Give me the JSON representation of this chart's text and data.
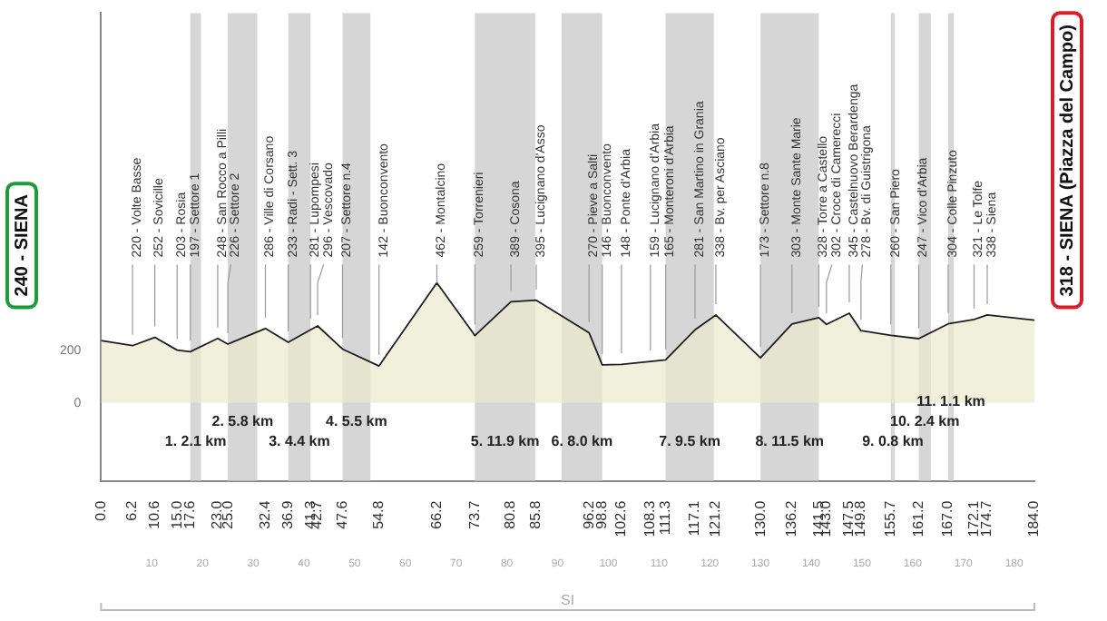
{
  "chart_data": {
    "type": "area",
    "x": [
      0,
      6.2,
      10.6,
      15.0,
      17.6,
      23.0,
      25.0,
      32.4,
      36.9,
      41.3,
      42.7,
      47.6,
      54.8,
      66.2,
      73.7,
      80.8,
      85.8,
      96.2,
      98.8,
      102.6,
      108.3,
      111.3,
      117.1,
      121.2,
      130.0,
      136.2,
      141.5,
      143.0,
      147.5,
      149.8,
      155.7,
      161.2,
      167.0,
      172.1,
      174.7,
      184.0
    ],
    "series": [
      {
        "color": "#e9e9cf",
        "values": [
          240,
          220,
          252,
          203,
          197,
          248,
          226,
          286,
          233,
          281,
          296,
          207,
          142,
          462,
          259,
          389,
          395,
          270,
          146,
          148,
          159,
          165,
          281,
          338,
          173,
          303,
          328,
          302,
          345,
          278,
          260,
          247,
          304,
          321,
          338,
          318
        ],
        "value_labels": [
          null,
          "220 - Volte Basse",
          "252 - Sovicille",
          "203 - Rosia",
          "197 - Settore 1",
          "248 - San Rocco a Pilli",
          "226 - Settore 2",
          "286 - Ville di Corsano",
          "233 - Radi - Sett. 3",
          "281 - Lupompesi",
          "296 - Vescovado",
          "207 - Settore n.4",
          "142 - Buonconvento",
          "462 - Montalcino",
          "259 - Torrenieri",
          "389 - Cosona",
          "395 - Lucignano d'Asso",
          "270 - Pieve a Salti",
          "146 - Buonconvento",
          "148 - Ponte d'Arbia",
          "159 - Lucignano d'Arbia",
          "165 - Monteroni d'Arbia",
          "281 - San Martino in Grania",
          "338 - Bv. per Asciano",
          "173 - Settore n.8",
          "303 - Monte Sante Marie",
          "328 - Torre a Castello",
          "302 - Croce di Camerecci",
          "345 - Castelnuovo Berardenga",
          "278 - Bv. di Guistrigona",
          "260 - San Piero",
          "247 - Vico d'Arbia",
          "304 - Colle Pinzuto",
          "321 - Le Tolfe",
          "338 - Siena",
          null
        ]
      }
    ],
    "xlim": [
      0,
      184
    ],
    "xticks": [
      {
        "value": 0,
        "label": "0.0"
      },
      6.2,
      10.6,
      {
        "value": 15,
        "label": "15.0"
      },
      17.6,
      {
        "value": 23,
        "label": "23.0"
      },
      {
        "value": 25,
        "label": "25.0"
      },
      32.4,
      36.9,
      41.3,
      42.7,
      47.6,
      54.8,
      66.2,
      73.7,
      80.8,
      85.8,
      96.2,
      98.8,
      102.6,
      108.3,
      111.3,
      117.1,
      121.2,
      {
        "value": 130,
        "label": "130.0"
      },
      136.2,
      141.5,
      {
        "value": 143,
        "label": "143.0"
      },
      147.5,
      149.8,
      155.7,
      161.2,
      {
        "value": 167,
        "label": "167.0"
      },
      172.1,
      174.7,
      {
        "value": 184,
        "label": "184.0"
      }
    ],
    "x2lim": [
      0,
      184
    ],
    "x2ticks": [
      10,
      20,
      30,
      40,
      50,
      60,
      70,
      80,
      90,
      100,
      110,
      120,
      130,
      140,
      150,
      160,
      170,
      180
    ],
    "ylim": [
      -300,
      1500
    ],
    "yticks": [
      0,
      200
    ],
    "grid": false,
    "legend": false,
    "marker": "none",
    "annotations": [
      "240 - SIENA",
      "318 - SIENA (Piazza del Campo)",
      "SI"
    ],
    "bands": [
      {
        "axis": "x",
        "from": 17.6,
        "to": 19.7,
        "label": "1. 2.1 km",
        "color": "#d6d6d6"
      },
      {
        "axis": "x",
        "from": 25.0,
        "to": 30.8,
        "label": "2. 5.8 km",
        "color": "#d6d6d6"
      },
      {
        "axis": "x",
        "from": 36.9,
        "to": 41.3,
        "label": "3. 4.4 km",
        "color": "#d6d6d6"
      },
      {
        "axis": "x",
        "from": 47.6,
        "to": 53.1,
        "label": "4. 5.5 km",
        "color": "#d6d6d6"
      },
      {
        "axis": "x",
        "from": 73.7,
        "to": 85.6,
        "label": "5. 11.9 km",
        "color": "#d6d6d6"
      },
      {
        "axis": "x",
        "from": 90.8,
        "to": 98.8,
        "label": "6. 8.0 km",
        "color": "#d6d6d6"
      },
      {
        "axis": "x",
        "from": 111.3,
        "to": 120.8,
        "label": "7. 9.5 km",
        "color": "#d6d6d6"
      },
      {
        "axis": "x",
        "from": 130.0,
        "to": 141.5,
        "label": "8. 11.5 km",
        "color": "#d6d6d6"
      },
      {
        "axis": "x",
        "from": 155.7,
        "to": 156.5,
        "label": "9. 0.8 km",
        "color": "#d6d6d6"
      },
      {
        "axis": "x",
        "from": 161.2,
        "to": 163.6,
        "label": "10. 2.4 km",
        "color": "#d6d6d6"
      },
      {
        "axis": "x",
        "from": 167.0,
        "to": 168.1,
        "label": "11. 1.1 km",
        "color": "#d6d6d6"
      }
    ]
  }
}
